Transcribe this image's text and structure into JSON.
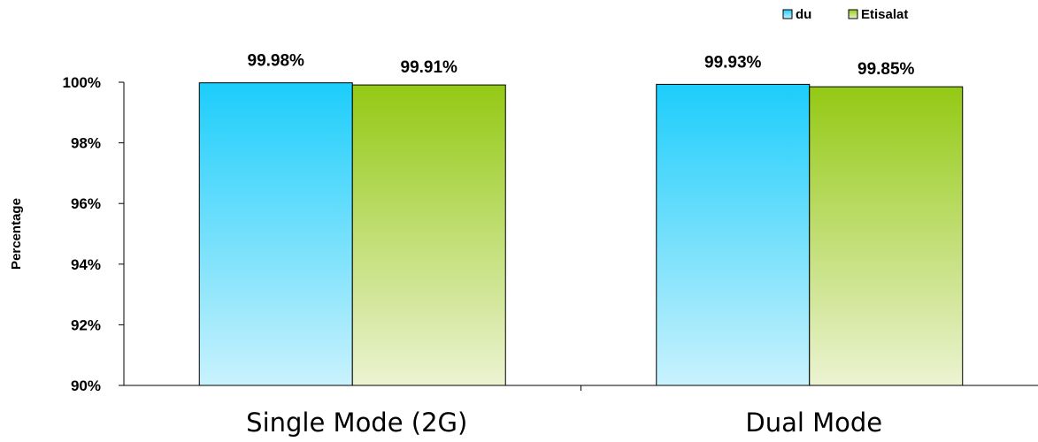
{
  "chart_data": {
    "type": "bar",
    "categories": [
      "Single Mode (2G)",
      "Dual Mode"
    ],
    "series": [
      {
        "name": "du",
        "values": [
          99.98,
          99.93
        ],
        "labels": [
          "99.98%",
          "99.93%"
        ],
        "color_top": "#1ccdfb",
        "color_bottom": "#c9f2fd"
      },
      {
        "name": "Etisalat",
        "values": [
          99.91,
          99.85
        ],
        "labels": [
          "99.91%",
          "99.85%"
        ],
        "color_top": "#94c914",
        "color_bottom": "#ecf3d2"
      }
    ],
    "ylabel": "Percentage",
    "ylim": [
      90,
      100
    ],
    "yticks": [
      90,
      92,
      94,
      96,
      98,
      100
    ],
    "ytick_labels": [
      "90%",
      "92%",
      "94%",
      "96%",
      "98%",
      "100%"
    ],
    "grid": false,
    "legend_position": "top-right"
  }
}
